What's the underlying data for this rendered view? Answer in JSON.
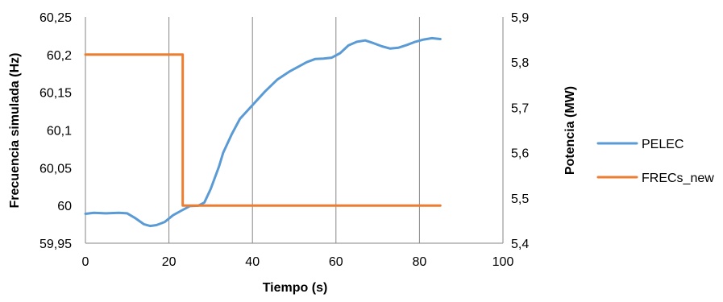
{
  "chart_data": {
    "type": "line",
    "xlabel": "Tiempo (s)",
    "ylabel_left": "Frecuencia simulada (Hz)",
    "ylabel_right": "Potencia (MW)",
    "xlim": [
      0,
      100
    ],
    "ylim_left": [
      59.95,
      60.25
    ],
    "ylim_right": [
      5.4,
      5.9
    ],
    "x_ticks": [
      "0",
      "20",
      "40",
      "60",
      "80",
      "100"
    ],
    "x_tick_values": [
      0,
      20,
      40,
      60,
      80,
      100
    ],
    "y_left_ticks": [
      "59,95",
      "60",
      "60,05",
      "60,1",
      "60,15",
      "60,2",
      "60,25"
    ],
    "y_left_tick_values": [
      59.95,
      60.0,
      60.05,
      60.1,
      60.15,
      60.2,
      60.25
    ],
    "y_right_ticks": [
      "5,4",
      "5,5",
      "5,6",
      "5,7",
      "5,8",
      "5,9"
    ],
    "y_right_tick_values": [
      5.4,
      5.5,
      5.6,
      5.7,
      5.8,
      5.9
    ],
    "grid": "vertical",
    "legend_position": "right",
    "series": [
      {
        "name": "PELEC",
        "axis": "right",
        "color": "#5b9bd5",
        "points": [
          [
            0,
            5.465
          ],
          [
            2,
            5.467
          ],
          [
            5,
            5.466
          ],
          [
            8,
            5.467
          ],
          [
            10,
            5.466
          ],
          [
            12,
            5.455
          ],
          [
            14,
            5.442
          ],
          [
            15.5,
            5.438
          ],
          [
            17,
            5.44
          ],
          [
            19,
            5.447
          ],
          [
            21,
            5.462
          ],
          [
            23,
            5.472
          ],
          [
            25,
            5.482
          ],
          [
            27,
            5.483
          ],
          [
            28.5,
            5.49
          ],
          [
            30,
            5.52
          ],
          [
            32,
            5.57
          ],
          [
            33,
            5.6
          ],
          [
            35,
            5.64
          ],
          [
            37,
            5.675
          ],
          [
            40,
            5.705
          ],
          [
            43,
            5.735
          ],
          [
            46,
            5.762
          ],
          [
            49,
            5.78
          ],
          [
            51,
            5.79
          ],
          [
            53,
            5.8
          ],
          [
            55,
            5.807
          ],
          [
            57,
            5.808
          ],
          [
            59,
            5.81
          ],
          [
            61,
            5.82
          ],
          [
            63,
            5.837
          ],
          [
            65,
            5.845
          ],
          [
            67,
            5.848
          ],
          [
            69,
            5.842
          ],
          [
            71,
            5.835
          ],
          [
            73,
            5.83
          ],
          [
            75,
            5.832
          ],
          [
            77,
            5.838
          ],
          [
            79,
            5.845
          ],
          [
            81,
            5.85
          ],
          [
            83,
            5.853
          ],
          [
            85,
            5.851
          ]
        ]
      },
      {
        "name": "FRECs_new",
        "axis": "left",
        "color": "#ed7d31",
        "points": [
          [
            0,
            60.2
          ],
          [
            23.3,
            60.2
          ],
          [
            23.3,
            60.0
          ],
          [
            85,
            60.0
          ]
        ]
      }
    ]
  }
}
